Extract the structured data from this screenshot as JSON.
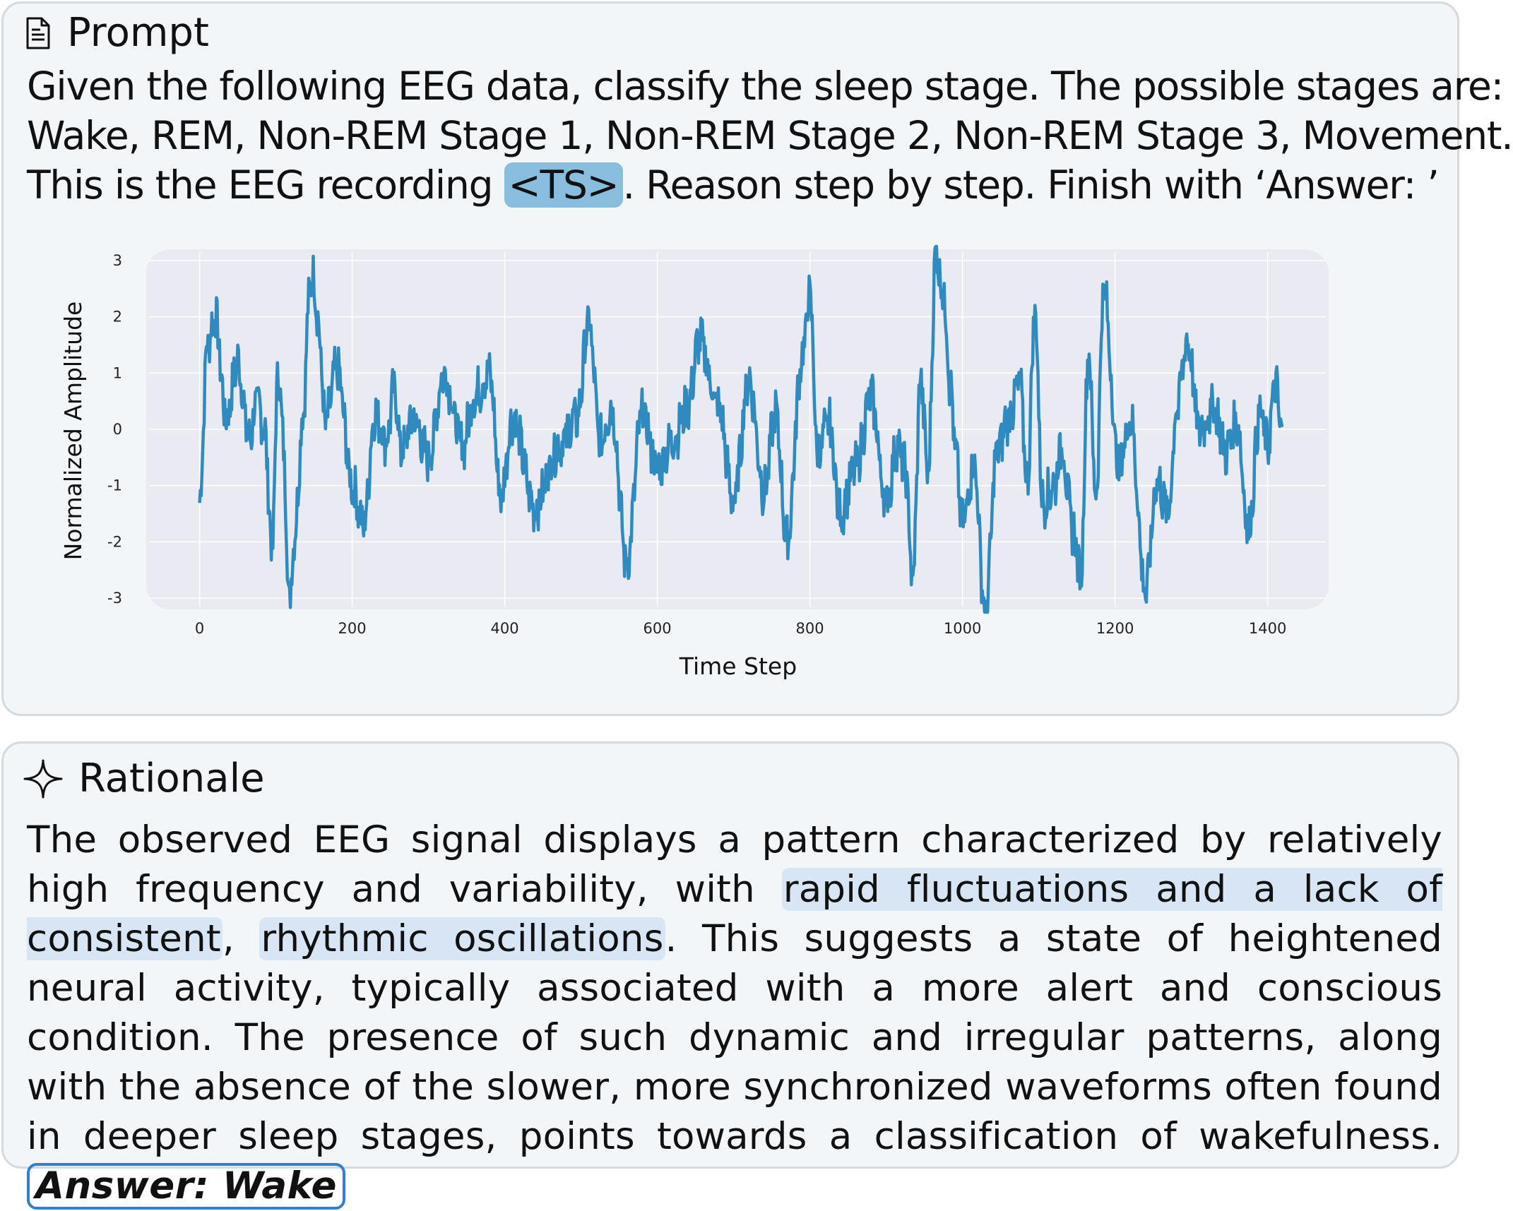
{
  "prompt": {
    "title": "Prompt",
    "icon": "document-icon",
    "line1": "Given the following EEG  data, classify the sleep stage. The possible stages are:",
    "line2": "Wake, REM, Non-REM Stage 1, Non-REM Stage 2, Non-REM Stage 3, Movement.",
    "line3_before": "This is the EEG recording ",
    "ts_token": "<TS>",
    "line3_after": ". Reason step by step. Finish with ‘Answer: ’"
  },
  "rationale": {
    "title": "Rationale",
    "icon": "sparkle-icon",
    "text_1": "The observed EEG signal displays a pattern characterized by relatively high frequency and variability, with ",
    "highlight_1": "rapid fluctuations and a lack of consistent",
    "text_2": ", ",
    "highlight_2": "rhythmic oscillations",
    "text_3": ". This suggests a state of heightened neural activity, typically associated with a more alert and conscious condition. The presence of such dynamic and irregular patterns, along with the absence of the slower, more synchronized waveforms often found in deeper sleep stages, points towards a classification of wakefulness.",
    "answer": "Answer: Wake"
  },
  "chart_data": {
    "type": "line",
    "xlabel": "Time Step",
    "ylabel": "Normalized Amplitude",
    "xlim": [
      -70,
      1480
    ],
    "ylim": [
      -3.2,
      3.2
    ],
    "xticks": [
      0,
      200,
      400,
      600,
      800,
      1000,
      1200,
      1400
    ],
    "yticks": [
      3,
      2,
      1,
      0,
      -1,
      -2,
      -3
    ],
    "grid": true,
    "line_color": "#2f8bbf",
    "plot_bg": "#eaeaf2",
    "n_points": 1420,
    "x": [
      0,
      10,
      20,
      35,
      50,
      65,
      75,
      85,
      95,
      103,
      108,
      118,
      125,
      135,
      145,
      150,
      155,
      165,
      180,
      200,
      215,
      230,
      245,
      255,
      265,
      280,
      300,
      320,
      345,
      360,
      380,
      395,
      410,
      440,
      470,
      495,
      510,
      525,
      540,
      560,
      580,
      600,
      620,
      640,
      655,
      680,
      700,
      720,
      740,
      755,
      770,
      790,
      800,
      810,
      825,
      840,
      860,
      880,
      900,
      915,
      925,
      935,
      945,
      955,
      965,
      975,
      985,
      990,
      1000,
      1015,
      1030,
      1045,
      1060,
      1075,
      1085,
      1095,
      1105,
      1120,
      1130,
      1145,
      1155,
      1165,
      1175,
      1185,
      1205,
      1220,
      1240,
      1255,
      1270,
      1280,
      1295,
      1310,
      1330,
      1345,
      1360,
      1375,
      1390,
      1400,
      1410,
      1419
    ],
    "y": [
      -1.3,
      1.5,
      2.0,
      0.2,
      1.2,
      -0.2,
      0.5,
      0.0,
      -2.1,
      1.1,
      0.1,
      -3.0,
      -1.8,
      0.2,
      2.6,
      2.7,
      1.9,
      0.1,
      1.1,
      -1.0,
      -1.7,
      0.3,
      -0.2,
      0.7,
      -0.4,
      0.2,
      -0.5,
      1.0,
      -0.3,
      0.6,
      1.0,
      -1.2,
      0.2,
      -1.4,
      -0.3,
      0.2,
      1.9,
      -0.2,
      0.4,
      -2.4,
      0.3,
      -0.7,
      -0.2,
      0.4,
      1.6,
      0.4,
      -1.3,
      0.9,
      -1.1,
      0.3,
      -2.0,
      1.3,
      2.4,
      -0.4,
      0.1,
      -1.5,
      -0.7,
      0.6,
      -1.3,
      -0.3,
      -0.7,
      -2.7,
      0.9,
      -0.8,
      3.2,
      2.4,
      0.7,
      -0.3,
      -1.7,
      -0.6,
      -3.3,
      -0.4,
      0.2,
      0.8,
      -0.9,
      2.1,
      -1.3,
      -1.0,
      -0.3,
      -1.8,
      -2.6,
      1.4,
      -1.2,
      2.5,
      -0.7,
      0.2,
      -2.9,
      -0.9,
      -1.5,
      0.3,
      1.6,
      0.0,
      0.4,
      -0.4,
      0.1,
      -1.8,
      0.3,
      -0.3,
      0.8,
      -0.1
    ]
  }
}
